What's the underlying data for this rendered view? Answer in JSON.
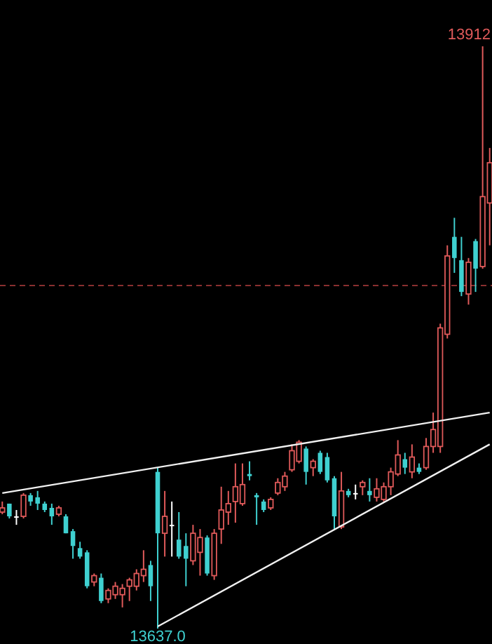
{
  "chart_data": {
    "type": "candlestick",
    "categories": [
      null,
      null,
      null,
      null,
      null,
      null,
      null,
      null,
      null,
      null,
      null,
      null,
      null,
      null,
      null,
      null,
      null,
      null,
      null,
      null,
      null,
      null,
      null,
      null,
      null,
      null,
      null,
      null,
      null,
      null,
      null,
      null,
      null,
      null,
      null,
      null,
      null,
      null,
      null,
      null,
      null,
      null,
      null,
      null,
      null,
      null,
      null,
      null,
      null,
      null,
      null,
      null,
      null,
      null,
      null,
      null,
      null,
      null,
      null,
      null,
      null,
      null,
      null,
      null,
      null,
      null,
      null,
      null,
      null,
      null
    ],
    "ohlc": [
      [
        13692,
        13697,
        13691,
        13694
      ],
      [
        13696,
        13696,
        13689,
        13690
      ],
      [
        13690,
        13693,
        13686,
        13690
      ],
      [
        13690,
        13701,
        13689,
        13700
      ],
      [
        13700,
        13701,
        13695,
        13697
      ],
      [
        13699,
        13702,
        13693,
        13696
      ],
      [
        13696,
        13697,
        13692,
        13693
      ],
      [
        13694,
        13696,
        13686,
        13690
      ],
      [
        13691,
        13695,
        13690,
        13694
      ],
      [
        13690,
        13691,
        13682,
        13682
      ],
      [
        13683,
        13684,
        13670,
        13676
      ],
      [
        13675,
        13678,
        13670,
        13671
      ],
      [
        13673,
        13674,
        13656,
        13657
      ],
      [
        13659,
        13663,
        13657,
        13662
      ],
      [
        13661,
        13663,
        13649,
        13650
      ],
      [
        13651,
        13656,
        13649,
        13655
      ],
      [
        13653,
        13659,
        13651,
        13657
      ],
      [
        13653,
        13658,
        13647,
        13656
      ],
      [
        13657,
        13661,
        13650,
        13660
      ],
      [
        13657,
        13665,
        13655,
        13663
      ],
      [
        13662,
        13674,
        13659,
        13665
      ],
      [
        13667,
        13669,
        13650,
        13657
      ],
      [
        13711,
        13713,
        13637,
        13682
      ],
      [
        13682,
        13702,
        13671,
        13690
      ],
      [
        13686,
        13697,
        13671,
        13686
      ],
      [
        13679,
        13692,
        13670,
        13671
      ],
      [
        13676,
        13682,
        13657,
        13670
      ],
      [
        13669,
        13686,
        13667,
        13682
      ],
      [
        13673,
        13684,
        13662,
        13680
      ],
      [
        13680,
        13681,
        13662,
        13663
      ],
      [
        13662,
        13684,
        13660,
        13682
      ],
      [
        13684,
        13704,
        13677,
        13693
      ],
      [
        13692,
        13702,
        13686,
        13696
      ],
      [
        13697,
        13715,
        13687,
        13704
      ],
      [
        13696,
        13715,
        13695,
        13705
      ],
      [
        13710,
        13716,
        13707,
        13709
      ],
      [
        13700,
        13701,
        13686,
        13699
      ],
      [
        13697,
        13698,
        13692,
        13693
      ],
      [
        13694,
        13699,
        13693,
        13698
      ],
      [
        13701,
        13708,
        13700,
        13706
      ],
      [
        13704,
        13711,
        13702,
        13709
      ],
      [
        13712,
        13724,
        13711,
        13721
      ],
      [
        13716,
        13726,
        13715,
        13725
      ],
      [
        13722,
        13723,
        13705,
        13711
      ],
      [
        13713,
        13717,
        13709,
        13716
      ],
      [
        13720,
        13721,
        13710,
        13711
      ],
      [
        13718,
        13720,
        13706,
        13707
      ],
      [
        13708,
        13709,
        13684,
        13690
      ],
      [
        13685,
        13711,
        13684,
        13702
      ],
      [
        13702,
        13703,
        13699,
        13700
      ],
      [
        13701,
        13705,
        13698,
        13701
      ],
      [
        13704,
        13707,
        13700,
        13706
      ],
      [
        13702,
        13708,
        13697,
        13700
      ],
      [
        13699,
        13708,
        13697,
        13703
      ],
      [
        13698,
        13706,
        13697,
        13704
      ],
      [
        13704,
        13713,
        13700,
        13711
      ],
      [
        13710,
        13726,
        13709,
        13719
      ],
      [
        13717,
        13720,
        13710,
        13713
      ],
      [
        13711,
        13724,
        13708,
        13718
      ],
      [
        13713,
        13715,
        13710,
        13711
      ],
      [
        13713,
        13727,
        13712,
        13723
      ],
      [
        13723,
        13739,
        13720,
        13731
      ],
      [
        13723,
        13781,
        13720,
        13779
      ],
      [
        13776,
        13818,
        13774,
        13813
      ],
      [
        13822,
        13831,
        13805,
        13812
      ],
      [
        13811,
        13822,
        13794,
        13796
      ],
      [
        13795,
        13812,
        13790,
        13810
      ],
      [
        13820,
        13821,
        13796,
        13807
      ],
      [
        13808,
        13912,
        13807,
        13841
      ],
      [
        13838,
        13864,
        13818,
        13857
      ]
    ],
    "colors": [
      "#e05a5a",
      "#3fd0d0",
      "#ffffff",
      "#e05a5a",
      "#3fd0d0",
      "#3fd0d0",
      "#3fd0d0",
      "#3fd0d0",
      "#e05a5a",
      "#3fd0d0",
      "#3fd0d0",
      "#3fd0d0",
      "#3fd0d0",
      "#e05a5a",
      "#3fd0d0",
      "#e05a5a",
      "#e05a5a",
      "#e05a5a",
      "#e05a5a",
      "#e05a5a",
      "#e05a5a",
      "#3fd0d0",
      "#3fd0d0",
      "#e05a5a",
      "#ffffff",
      "#3fd0d0",
      "#3fd0d0",
      "#e05a5a",
      "#e05a5a",
      "#3fd0d0",
      "#e05a5a",
      "#e05a5a",
      "#e05a5a",
      "#e05a5a",
      "#e05a5a",
      "#3fd0d0",
      "#3fd0d0",
      "#3fd0d0",
      "#e05a5a",
      "#e05a5a",
      "#e05a5a",
      "#e05a5a",
      "#e05a5a",
      "#3fd0d0",
      "#e05a5a",
      "#3fd0d0",
      "#3fd0d0",
      "#3fd0d0",
      "#e05a5a",
      "#3fd0d0",
      "#ffffff",
      "#e05a5a",
      "#3fd0d0",
      "#e05a5a",
      "#e05a5a",
      "#e05a5a",
      "#e05a5a",
      "#3fd0d0",
      "#e05a5a",
      "#3fd0d0",
      "#e05a5a",
      "#e05a5a",
      "#e05a5a",
      "#e05a5a",
      "#3fd0d0",
      "#3fd0d0",
      "#e05a5a",
      "#3fd0d0",
      "#e05a5a",
      "#e05a5a"
    ],
    "series": [
      {
        "type": "line",
        "color": "#f0f0f0",
        "values": [
          13701,
          null,
          null,
          null,
          null,
          null,
          null,
          null,
          null,
          null,
          null,
          null,
          null,
          null,
          null,
          null,
          null,
          null,
          null,
          null,
          null,
          null,
          null,
          null,
          null,
          null,
          null,
          null,
          null,
          null,
          null,
          null,
          null,
          null,
          null,
          null,
          null,
          null,
          null,
          null,
          null,
          null,
          null,
          null,
          null,
          null,
          null,
          null,
          null,
          null,
          null,
          null,
          null,
          null,
          null,
          null,
          null,
          null,
          null,
          null,
          null,
          null,
          null,
          null,
          null,
          null,
          null,
          null,
          null,
          13739
        ]
      },
      {
        "type": "line",
        "color": "#f0f0f0",
        "values": [
          null,
          null,
          null,
          null,
          null,
          null,
          null,
          null,
          null,
          null,
          null,
          null,
          null,
          null,
          null,
          null,
          null,
          null,
          null,
          null,
          null,
          null,
          13638,
          null,
          null,
          null,
          null,
          null,
          null,
          null,
          null,
          null,
          null,
          null,
          null,
          null,
          null,
          null,
          null,
          null,
          null,
          null,
          null,
          null,
          null,
          null,
          null,
          null,
          null,
          null,
          null,
          null,
          null,
          null,
          null,
          null,
          null,
          null,
          null,
          null,
          null,
          null,
          null,
          null,
          null,
          null,
          null,
          null,
          null,
          13724
        ]
      }
    ],
    "ref_lines": [
      {
        "axis": "y",
        "value": 13799,
        "color": "#8a3030",
        "line_style": "dashed"
      }
    ],
    "annotations": [
      "13912",
      "13637.0"
    ],
    "tick_labels": false
  }
}
